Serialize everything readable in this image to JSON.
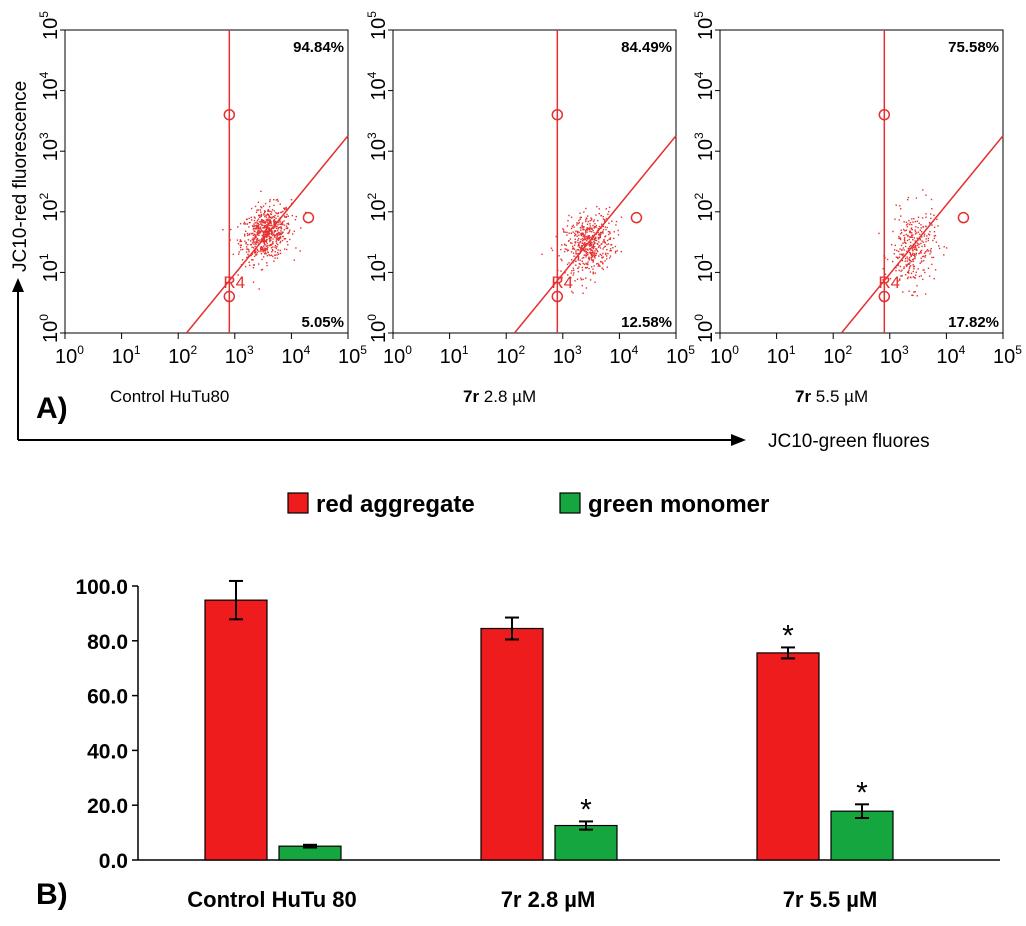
{
  "panel_a": {
    "letter": "A)",
    "y_axis_title": "JC10-red fluorescence",
    "x_axis_title": "JC10-green fluores",
    "gate_label": "R4",
    "tick_base": "10",
    "tick_exponents": [
      "0",
      "1",
      "2",
      "3",
      "4",
      "5"
    ],
    "plots": [
      {
        "upper_pct": "94.84%",
        "lower_pct": "5.05%",
        "label_bold": "",
        "label_rest": "Control HuTu80"
      },
      {
        "upper_pct": "84.49%",
        "lower_pct": "12.58%",
        "label_bold": "7r",
        "label_rest": "2.8 µM"
      },
      {
        "upper_pct": "75.58%",
        "lower_pct": "17.82%",
        "label_bold": "7r",
        "label_rest": "5.5 µM"
      }
    ]
  },
  "panel_b": {
    "letter": "B)",
    "legend": [
      {
        "label": "red aggregate",
        "color": "#ee1c1c"
      },
      {
        "label": "green monomer",
        "color": "#16a640"
      }
    ]
  },
  "chart_data": [
    {
      "type": "scatter",
      "title": "Control HuTu80",
      "xlabel": "JC10-green fluores",
      "ylabel": "JC10-red fluorescence",
      "xscale": "log",
      "yscale": "log",
      "xlim": [
        1,
        100000
      ],
      "ylim": [
        1,
        100000
      ],
      "quadrant_percentages": {
        "upper": 94.84,
        "lower": 5.05
      },
      "cluster": {
        "center_x": 3500,
        "center_y": 45,
        "color": "#e53030"
      }
    },
    {
      "type": "scatter",
      "title": "7r 2.8 µM",
      "xlabel": "JC10-green fluores",
      "ylabel": "JC10-red fluorescence",
      "xscale": "log",
      "yscale": "log",
      "xlim": [
        1,
        100000
      ],
      "ylim": [
        1,
        100000
      ],
      "quadrant_percentages": {
        "upper": 84.49,
        "lower": 12.58
      },
      "cluster": {
        "center_x": 2800,
        "center_y": 30,
        "color": "#e53030"
      }
    },
    {
      "type": "scatter",
      "title": "7r 5.5 µM",
      "xlabel": "JC10-green fluores",
      "ylabel": "JC10-red fluorescence",
      "xscale": "log",
      "yscale": "log",
      "xlim": [
        1,
        100000
      ],
      "ylim": [
        1,
        100000
      ],
      "quadrant_percentages": {
        "upper": 75.58,
        "lower": 17.82
      },
      "cluster": {
        "center_x": 2500,
        "center_y": 25,
        "color": "#e53030"
      }
    },
    {
      "type": "bar",
      "categories": [
        "Control HuTu 80",
        "7r  2.8 µM",
        "7r  5.5 µM"
      ],
      "series": [
        {
          "name": "red aggregate",
          "color": "#ee1c1c",
          "values": [
            94.84,
            84.49,
            75.58
          ],
          "errors": [
            7.0,
            4.0,
            2.0
          ],
          "significant": [
            false,
            false,
            true
          ]
        },
        {
          "name": "green monomer",
          "color": "#16a640",
          "values": [
            5.05,
            12.58,
            17.82
          ],
          "errors": [
            0.5,
            1.5,
            2.5
          ],
          "significant": [
            false,
            true,
            true
          ]
        }
      ],
      "yticks": [
        "0.0",
        "20.0",
        "40.0",
        "60.0",
        "80.0",
        "100.0"
      ],
      "ylim": [
        0,
        100
      ],
      "significance_marker": "*"
    }
  ]
}
